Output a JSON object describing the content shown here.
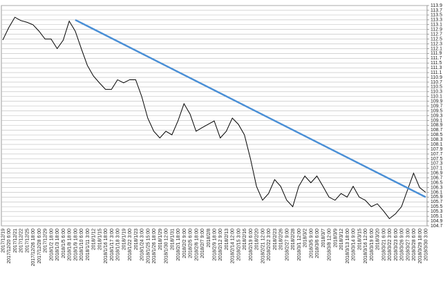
{
  "chart_data": {
    "type": "line",
    "categories": [
      "2017/12/19",
      "2017/12/20 6:00",
      "2017/12/21",
      "2017/12/22",
      "2017/12/25",
      "2017/12/26 18:00",
      "2017/12/28 6:00",
      "2017/12/29",
      "2018/1/2 18:00",
      "2018/1/3 18:00",
      "2018/1/5 6:00",
      "2018/1/8 18:00",
      "2018/1/9 18:00",
      "2018/1/10 6:00",
      "2018/1/11 3:00",
      "2018/1/12",
      "2018/1/15",
      "2018/1/16 18:00",
      "2018/1/17 3:00",
      "2018/1/18 3:00",
      "2018/1/19",
      "2018/1/22 3:00",
      "2018/1/23",
      "2018/1/24 3:00",
      "2018/1/25 15:00",
      "2018/1/26 18:00",
      "2018/1/29",
      "2018/1/30 12:00",
      "2018/1/31",
      "2018/2/1 18:00",
      "2018/2/2 9:00",
      "2018/2/5 6:00",
      "2018/2/6 18:00",
      "2018/2/7 9:00",
      "2018/2/8",
      "2018/2/9 18:00",
      "2018/2/12 9:00",
      "2018/2/13",
      "2018/2/14 12:00",
      "2018/2/15 3:00",
      "2018/2/16",
      "2018/2/19 6:00",
      "2018/2/20",
      "2018/2/21 12:00",
      "2018/2/22 3:00",
      "2018/2/23",
      "2018/2/26",
      "2018/2/27 9:00",
      "2018/2/28",
      "2018/3/1 12:00",
      "2018/3/2",
      "2018/3/5 9:00",
      "2018/3/6 6:00",
      "2018/3/7",
      "2018/3/8 12:00",
      "2018/3/9",
      "2018/3/12",
      "2018/3/13 18:00",
      "2018/3/14 9:00",
      "2018/3/15",
      "2018/3/16 12:00",
      "2018/3/19 6:00",
      "2018/3/20",
      "2018/3/21 6:00",
      "2018/3/22 3:00",
      "2018/3/23 6:00",
      "2018/3/26 9:00",
      "2018/3/27 3:00",
      "2018/3/28 6:00",
      "2018/3/29 18:00",
      "2018/3/30 3:00"
    ],
    "series": [
      {
        "color": "#000000",
        "values": [
          112.46,
          112.98,
          113.41,
          113.27,
          113.2,
          113.1,
          112.83,
          112.5,
          112.5,
          112.1,
          112.45,
          113.25,
          112.83,
          112.1,
          111.4,
          110.96,
          110.67,
          110.4,
          110.4,
          110.8,
          110.67,
          110.8,
          110.8,
          110.1,
          109.2,
          108.65,
          108.37,
          108.65,
          108.5,
          109.08,
          109.8,
          109.37,
          108.65,
          108.8,
          108.94,
          109.08,
          108.37,
          108.65,
          109.2,
          108.94,
          108.5,
          107.5,
          106.35,
          105.77,
          106.05,
          106.63,
          106.35,
          105.77,
          105.5,
          106.35,
          106.78,
          106.5,
          106.78,
          106.35,
          105.9,
          105.77,
          106.05,
          105.9,
          106.35,
          105.9,
          105.77,
          105.5,
          105.62,
          105.33,
          105.0,
          105.2,
          105.5,
          106.2,
          106.9,
          106.3,
          106.1
        ]
      }
    ],
    "trendline": {
      "color": "#4a8fd6",
      "x": [
        "2018/1/9 18:00",
        "2018/3/30 3:00"
      ],
      "values": [
        113.3,
        105.9
      ]
    },
    "ylim": [
      104.7,
      113.9
    ],
    "yticks": [
      104.7,
      104.9,
      105.1,
      105.3,
      105.5,
      105.7,
      105.9,
      106.1,
      106.3,
      106.5,
      106.7,
      106.9,
      107.1,
      107.3,
      107.5,
      107.7,
      107.9,
      108.1,
      108.3,
      108.5,
      108.7,
      108.9,
      109.1,
      109.3,
      109.5,
      109.7,
      109.9,
      110.1,
      110.3,
      110.5,
      110.7,
      110.9,
      111.1,
      111.3,
      111.5,
      111.7,
      111.9,
      112.1,
      112.3,
      112.5,
      112.7,
      112.9,
      113.1,
      113.3,
      113.5,
      113.7,
      113.9
    ],
    "grid": true
  }
}
